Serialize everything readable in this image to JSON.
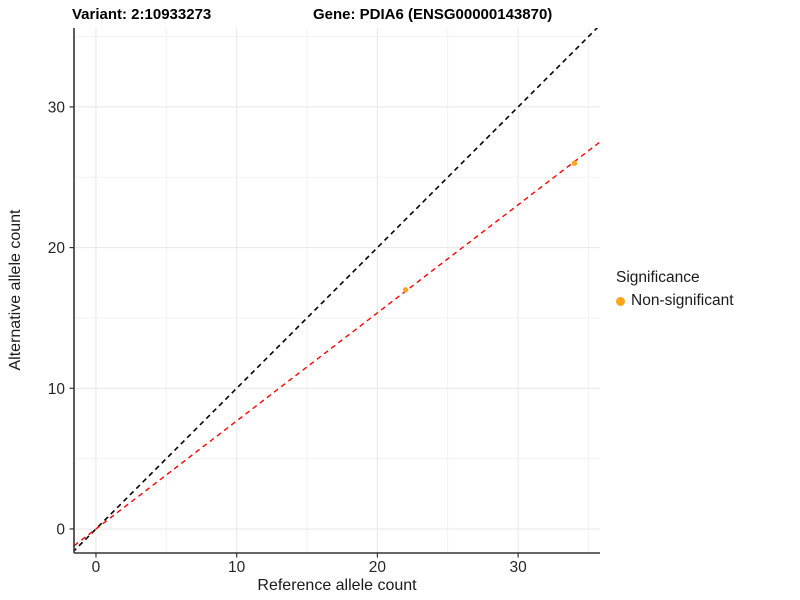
{
  "chart_data": {
    "type": "scatter",
    "title_variant": "Variant: 2:10933273",
    "title_gene": "Gene: PDIA6 (ENSG00000143870)",
    "xlabel": "Reference allele count",
    "ylabel": "Alternative allele count",
    "x_ticks": [
      0,
      10,
      20,
      30
    ],
    "y_ticks": [
      0,
      10,
      20,
      30
    ],
    "x_minor_ticks": [
      5,
      15,
      25,
      35
    ],
    "y_minor_ticks": [
      5,
      15,
      25,
      35
    ],
    "xlim": [
      -1.56,
      35.82
    ],
    "ylim": [
      -1.71,
      35.61
    ],
    "grid": true,
    "points": [
      {
        "x": 22,
        "y": 17,
        "series": "Non-significant"
      },
      {
        "x": 34,
        "y": 26,
        "series": "Non-significant"
      }
    ],
    "point_color": "#FFA51E",
    "lines": [
      {
        "name": "identity-line",
        "slope": 1,
        "intercept": 0,
        "color": "#000000",
        "style": "dashed"
      },
      {
        "name": "fit-line",
        "slope": 0.768,
        "intercept": 0,
        "color": "#FF0000",
        "style": "dashed"
      }
    ],
    "legend": {
      "title": "Significance",
      "position": "right",
      "entries": [
        {
          "label": "Non-significant",
          "color": "#FFA51E"
        }
      ]
    },
    "colors": {
      "axis_line": "#333333",
      "tick_label": "#262626",
      "major_grid": "#e7e7e7",
      "minor_grid": "#f2f2f2"
    }
  }
}
